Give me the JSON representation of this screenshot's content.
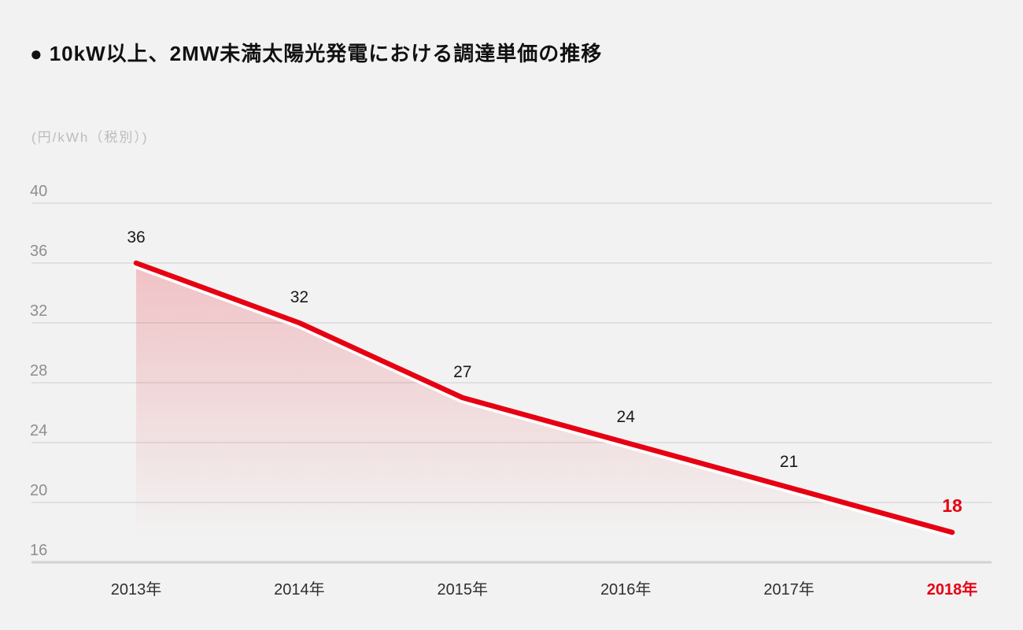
{
  "page": {
    "background": "#f2f2f2"
  },
  "header": {
    "bullet": "●",
    "title": "10kW以上、2MW未満太陽光発電における調達単価の推移"
  },
  "chart_data": {
    "type": "area",
    "title": "10kW以上、2MW未満太陽光発電における調達単価の推移",
    "unit_label": "(円/kWh（税別）)",
    "categories": [
      "2013年",
      "2014年",
      "2015年",
      "2016年",
      "2017年",
      "2018年"
    ],
    "values": [
      36,
      32,
      27,
      24,
      21,
      18
    ],
    "value_labels": [
      "36",
      "32",
      "27",
      "24",
      "21",
      "18"
    ],
    "y_ticks": [
      40,
      36,
      32,
      28,
      24,
      20,
      16
    ],
    "ylim": [
      16,
      40
    ],
    "grid": true,
    "legend": "none",
    "highlight_last_index": 5,
    "colors": {
      "line": "#e60012",
      "line_shadow": "#ffffff",
      "fill_top": "rgba(230,0,18,0.20)",
      "fill_bottom": "rgba(230,0,18,0)",
      "grid": "#e0e0e0",
      "axis_bottom": "#d2d2d2",
      "tick_text": "#8e8e8e",
      "value_text": "#1a1a1a",
      "xlabel_text": "#2f2f2f",
      "highlight": "#e60012",
      "unit_text": "#bcbcbc",
      "title_text": "#111111"
    }
  }
}
